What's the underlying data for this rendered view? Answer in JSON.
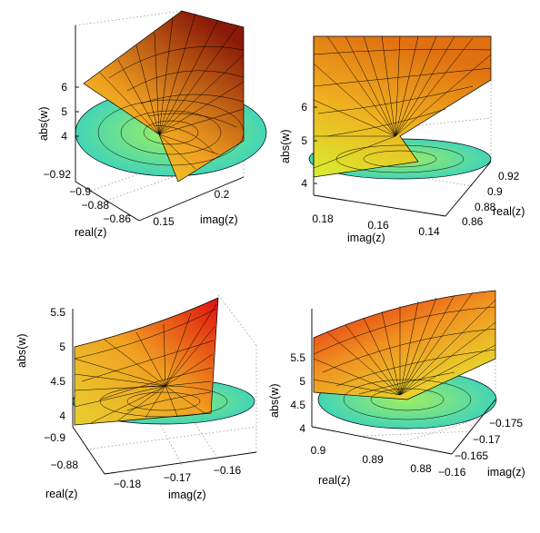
{
  "chart_data": [
    {
      "type": "surface",
      "panel": "top-left",
      "title": "",
      "zlabel": "abs(w)",
      "xlabel": "real(z)",
      "ylabel": "imag(z)",
      "z_ticks": [
        "6",
        "5",
        "4"
      ],
      "x_ticks": [
        "−0.92",
        "−0.9",
        "−0.88",
        "−0.86"
      ],
      "y_ticks": [
        "0.15",
        "0.2"
      ],
      "zlim": [
        3.6,
        6.2
      ],
      "grid": true,
      "colormap": [
        "#30d0c8",
        "#e8ee30",
        "#f0a020",
        "#8a1a08"
      ]
    },
    {
      "type": "surface",
      "panel": "top-right",
      "title": "",
      "zlabel": "abs(w)",
      "xlabel": "real(z)",
      "ylabel": "imag(z)",
      "z_ticks": [
        "6",
        "5",
        "4"
      ],
      "x_ticks": [
        "0.92",
        "0.9",
        "0.88",
        "0.86"
      ],
      "y_ticks": [
        "0.18",
        "0.16",
        "0.14"
      ],
      "zlim": [
        3.8,
        6.6
      ],
      "grid": true,
      "colormap": [
        "#30d0c8",
        "#e8ee30",
        "#f0a020",
        "#8a1a08"
      ]
    },
    {
      "type": "surface",
      "panel": "bottom-left",
      "title": "",
      "zlabel": "abs(w)",
      "xlabel": "real(z)",
      "ylabel": "imag(z)",
      "z_ticks": [
        "5.5",
        "5",
        "4.5",
        "4"
      ],
      "x_ticks": [
        "−0.9",
        "−0.88"
      ],
      "y_ticks": [
        "−0.18",
        "−0.17",
        "−0.16"
      ],
      "zlim": [
        3.9,
        5.6
      ],
      "grid": true,
      "colormap": [
        "#30d0c8",
        "#e8ee30",
        "#f0a020",
        "#e01010"
      ]
    },
    {
      "type": "surface",
      "panel": "bottom-right",
      "title": "",
      "zlabel": "abs(w)",
      "xlabel": "real(z)",
      "ylabel": "imag(z)",
      "z_ticks": [
        "5.5",
        "5",
        "4.5",
        "4"
      ],
      "x_ticks": [
        "0.9",
        "0.89",
        "0.88"
      ],
      "y_ticks": [
        "−0.175",
        "−0.17",
        "−0.165",
        "−0.16"
      ],
      "zlim": [
        3.9,
        5.8
      ],
      "grid": true,
      "colormap": [
        "#30d0c8",
        "#e8ee30",
        "#f0a020",
        "#e01010"
      ]
    }
  ]
}
